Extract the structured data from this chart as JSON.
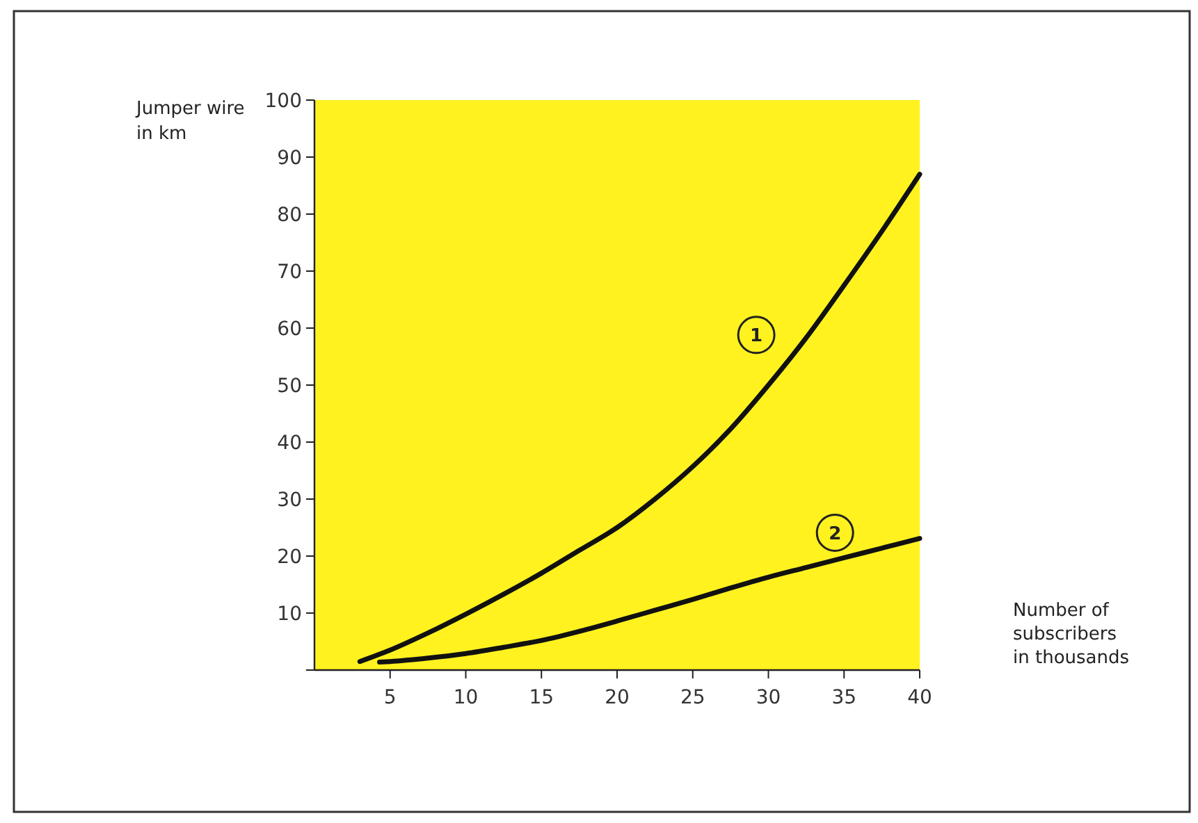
{
  "chart_data": {
    "type": "line",
    "xlabel": "Number of\nsubscribers\nin thousands",
    "ylabel": "Jumper wire\nin km",
    "xlim": [
      0,
      40
    ],
    "ylim": [
      0,
      100
    ],
    "xticks": [
      5,
      10,
      15,
      20,
      25,
      30,
      35,
      40
    ],
    "yticks": [
      {
        "value": 0,
        "label": null
      },
      10,
      20,
      30,
      40,
      50,
      60,
      70,
      80,
      90,
      100
    ],
    "grid": false,
    "marker": "none",
    "line_style": "solid",
    "series": [
      {
        "color": "#111111",
        "x": [
          3,
          5,
          7.5,
          10,
          12.5,
          15,
          17.5,
          20,
          22.5,
          25,
          27.5,
          30,
          32.5,
          35,
          37.5,
          40
        ],
        "values": [
          1.5,
          3.5,
          6.5,
          9.8,
          13.3,
          17,
          21,
          25,
          30,
          35.7,
          42.3,
          50,
          58.3,
          67.5,
          77,
          87
        ]
      },
      {
        "color": "#111111",
        "x": [
          4.3,
          5,
          7.5,
          10,
          12.5,
          15,
          17.5,
          20,
          22.5,
          25,
          27.5,
          30,
          32.5,
          35,
          37.5,
          40
        ],
        "values": [
          1.4,
          1.5,
          2.1,
          2.9,
          4,
          5.2,
          6.8,
          8.6,
          10.5,
          12.4,
          14.4,
          16.3,
          18,
          19.7,
          21.4,
          23.1
        ]
      }
    ],
    "annotations": [
      {
        "text": "1",
        "x": 29.2,
        "y": 58.8
      },
      {
        "text": "2",
        "x": 34.4,
        "y": 24.1
      }
    ]
  }
}
